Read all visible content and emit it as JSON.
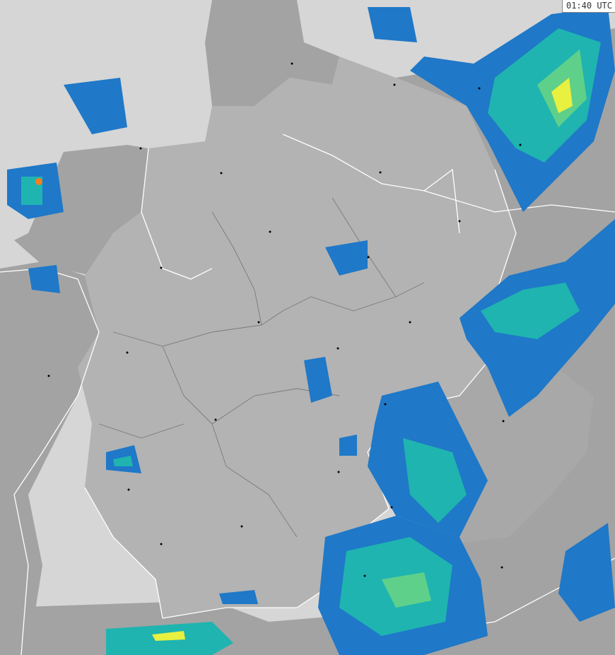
{
  "timestamp": "01:40 UTC",
  "colors": {
    "sea": "#d6d6d6",
    "germany_land": "#b3b3b3",
    "neighbor_land": "#a3a3a3",
    "border": "#ffffff",
    "state_border": "#7a7a7a",
    "precip_light": "#1f78c8",
    "precip_moderate": "#1fb4b0",
    "precip_medium": "#5fd08a",
    "precip_heavy": "#e8f040",
    "precip_intense": "#f08020"
  }
}
